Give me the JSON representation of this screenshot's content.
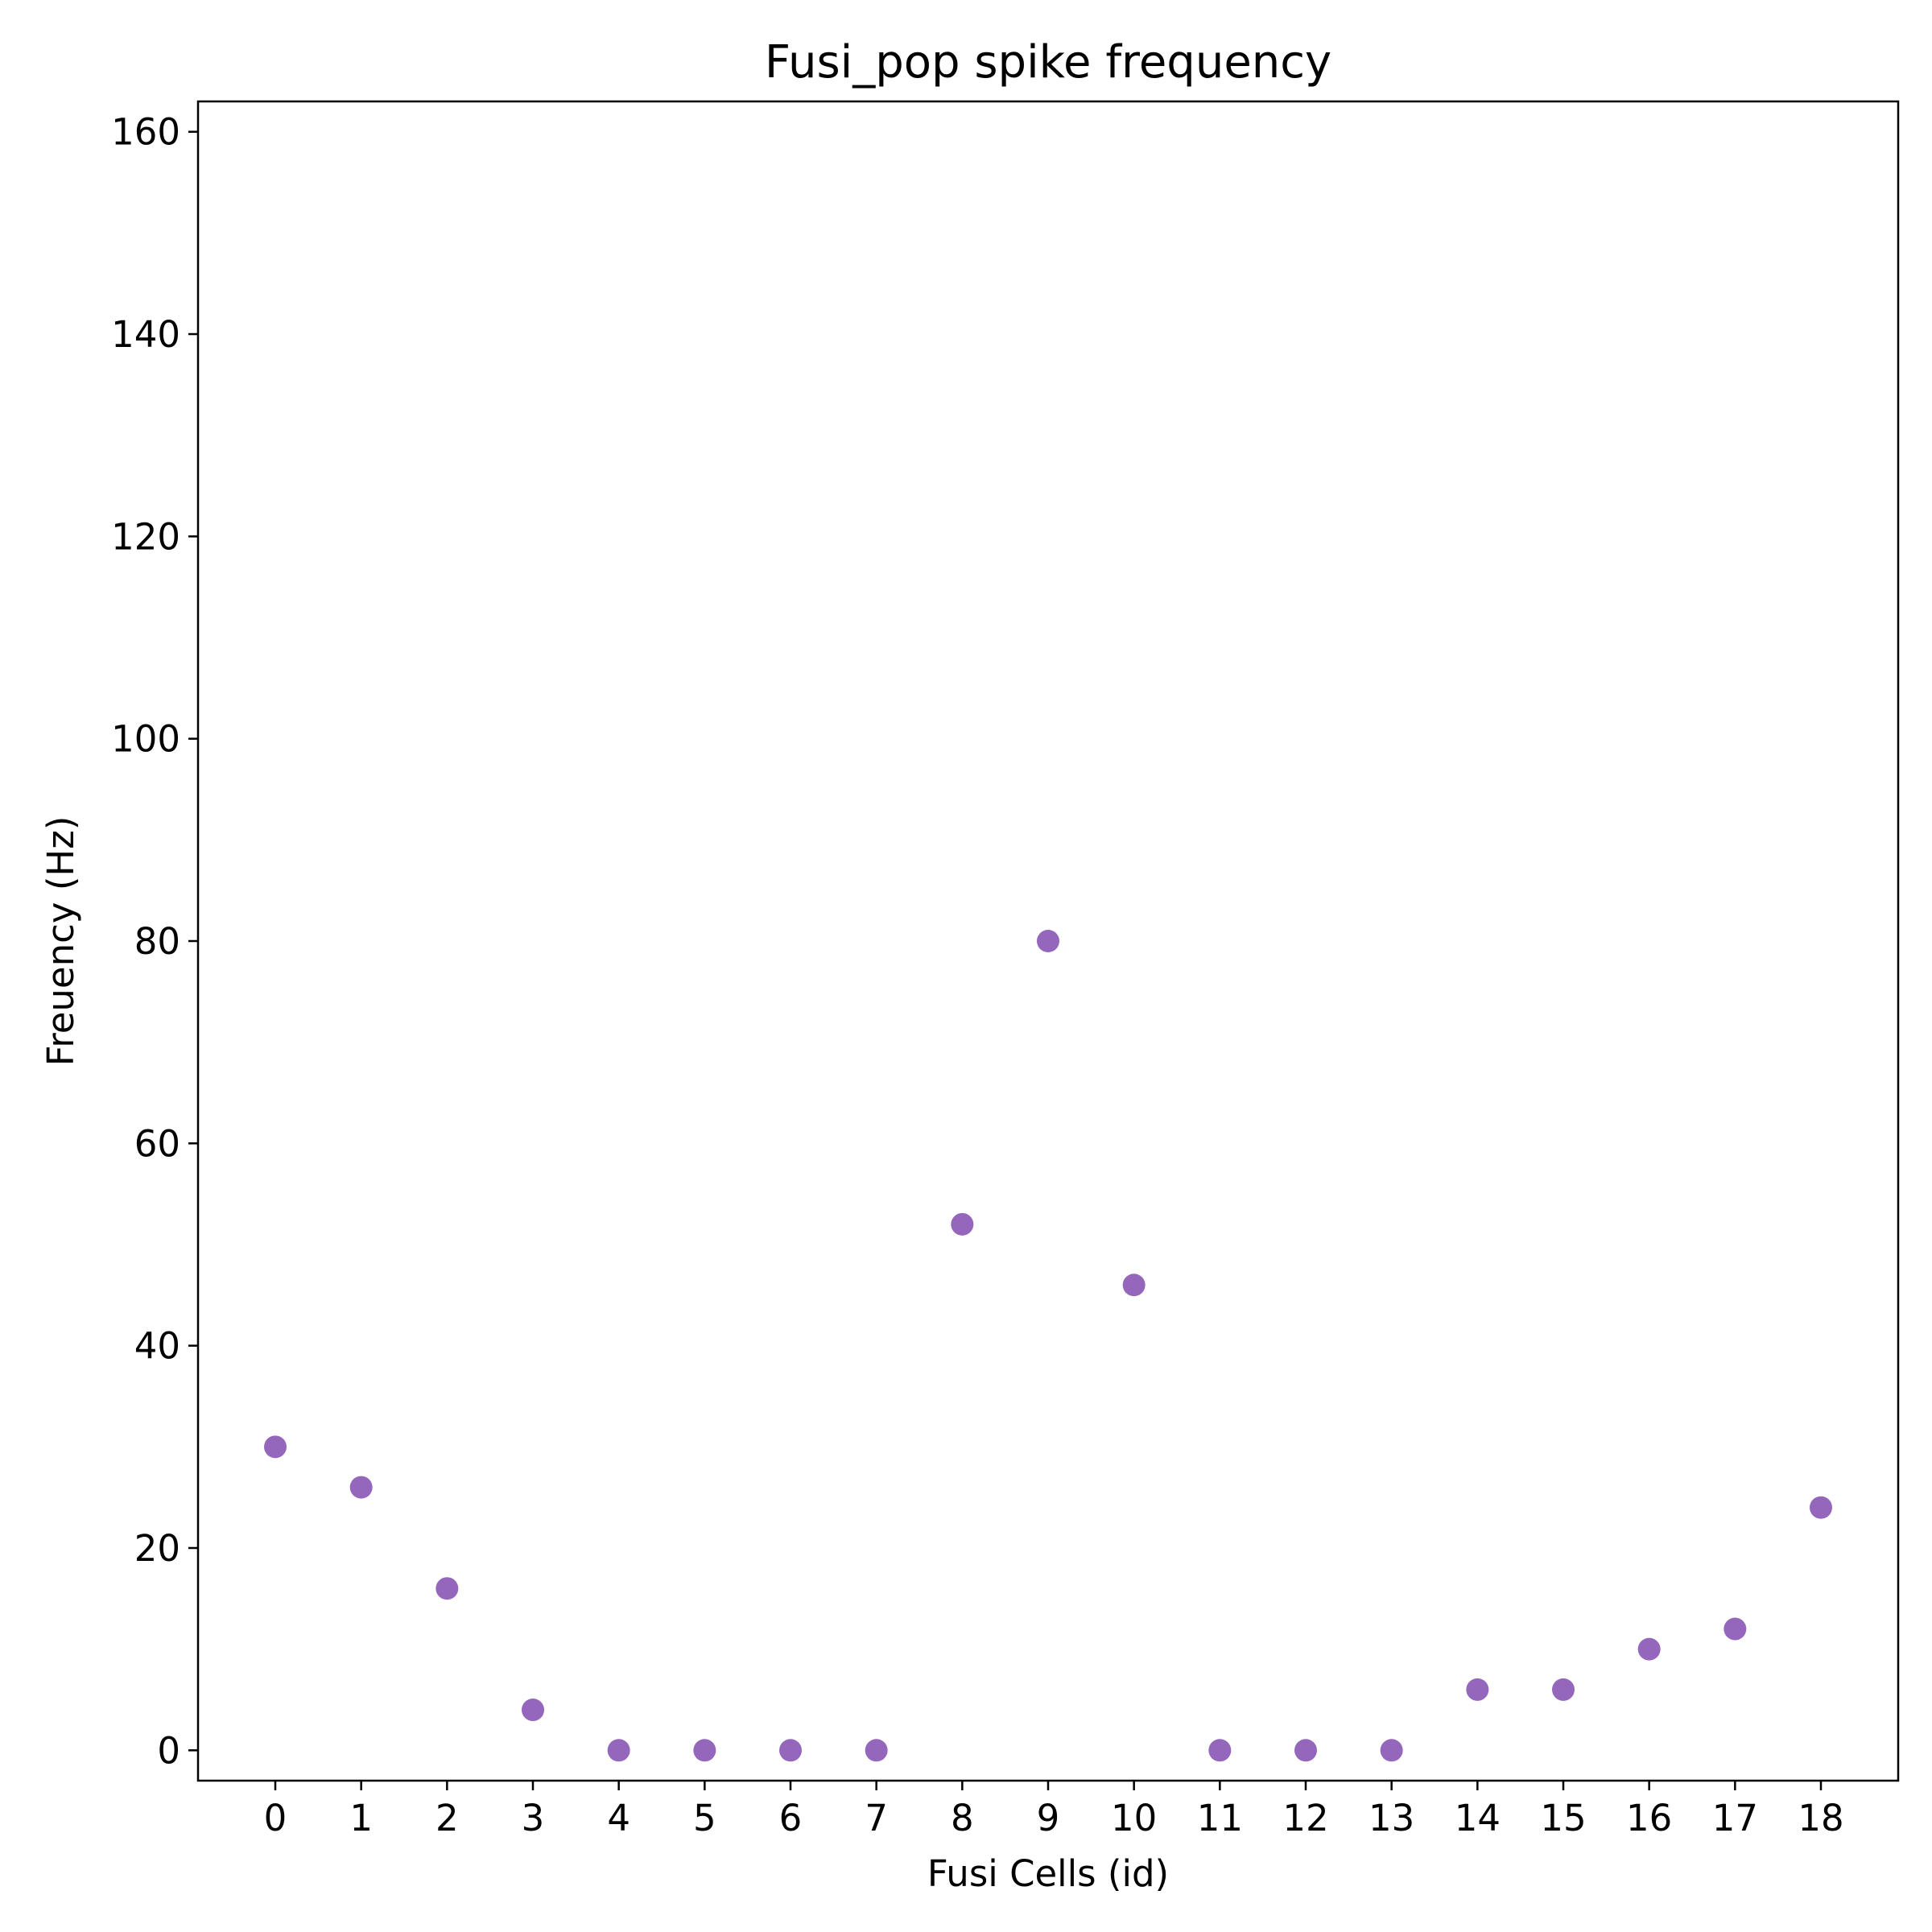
{
  "chart_data": {
    "type": "scatter",
    "title": "Fusi_pop spike frequency",
    "xlabel": "Fusi Cells (id)",
    "ylabel": "Freuency (Hz)",
    "x": [
      0,
      1,
      2,
      3,
      4,
      5,
      6,
      7,
      8,
      9,
      10,
      11,
      12,
      13,
      14,
      15,
      16,
      17,
      18
    ],
    "y": [
      30,
      26,
      16,
      4,
      0,
      0,
      0,
      0,
      52,
      80,
      46,
      0,
      0,
      0,
      6,
      6,
      10,
      12,
      24
    ],
    "xticks": [
      "0",
      "1",
      "2",
      "3",
      "4",
      "5",
      "6",
      "7",
      "8",
      "9",
      "10",
      "11",
      "12",
      "13",
      "14",
      "15",
      "16",
      "17",
      "18"
    ],
    "yticks": [
      "0",
      "20",
      "40",
      "60",
      "80",
      "100",
      "120",
      "140",
      "160"
    ],
    "xlim": [
      -0.9,
      18.9
    ],
    "ylim": [
      -3,
      163
    ],
    "grid": false,
    "marker_color": "#9467bd"
  }
}
